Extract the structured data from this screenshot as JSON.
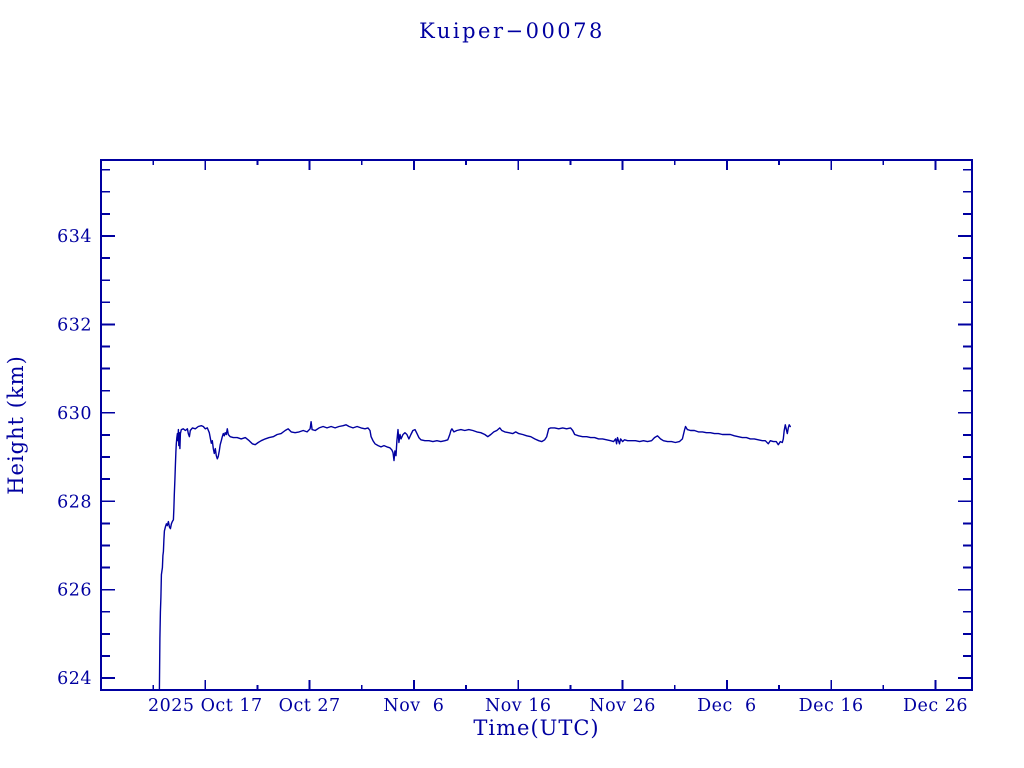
{
  "colors": {
    "accent": "#0000A0",
    "background": "#ffffff"
  },
  "chart_data": {
    "type": "line",
    "title": "Kuiper−00078",
    "xlabel": "Time(UTC)",
    "ylabel": "Height (km)",
    "grid": false,
    "legend": false,
    "line_color": "#0000A0",
    "axis_color": "#0000A0",
    "x_axis_note": "days measured from axis start; tick labels are calendar dates shown on the plot",
    "x_range": [
      0,
      83.5
    ],
    "y_range": [
      623.73,
      635.72
    ],
    "x_major_ticks": [
      {
        "pos": 10,
        "label": "2025 Oct 17"
      },
      {
        "pos": 20,
        "label": "Oct 27"
      },
      {
        "pos": 30,
        "label": "Nov  6"
      },
      {
        "pos": 40,
        "label": "Nov 16"
      },
      {
        "pos": 50,
        "label": "Nov 26"
      },
      {
        "pos": 60,
        "label": "Dec  6"
      },
      {
        "pos": 70,
        "label": "Dec 16"
      },
      {
        "pos": 80,
        "label": "Dec 26"
      }
    ],
    "x_minor_ticks": [
      5,
      15,
      25,
      35,
      45,
      55,
      65,
      75
    ],
    "y_major_ticks": [
      {
        "pos": 624,
        "label": "624"
      },
      {
        "pos": 626,
        "label": "626"
      },
      {
        "pos": 628,
        "label": "628"
      },
      {
        "pos": 630,
        "label": "630"
      },
      {
        "pos": 632,
        "label": "632"
      },
      {
        "pos": 634,
        "label": "634"
      }
    ],
    "y_minor_ticks": [
      624.5,
      625,
      625.5,
      626.5,
      627,
      627.5,
      628.5,
      629,
      629.5,
      630.5,
      631,
      631.5,
      632.5,
      633,
      633.5,
      634.5,
      635,
      635.5
    ],
    "series": [
      {
        "name": "height",
        "points": [
          [
            5.6,
            623.73
          ],
          [
            5.65,
            624.9
          ],
          [
            5.69,
            625.5
          ],
          [
            5.74,
            625.82
          ],
          [
            5.79,
            626.34
          ],
          [
            5.89,
            626.5
          ],
          [
            5.93,
            626.77
          ],
          [
            5.98,
            626.86
          ],
          [
            6.03,
            627.13
          ],
          [
            6.08,
            627.33
          ],
          [
            6.17,
            627.42
          ],
          [
            6.27,
            627.49
          ],
          [
            6.36,
            627.45
          ],
          [
            6.46,
            627.54
          ],
          [
            6.56,
            627.42
          ],
          [
            6.65,
            627.38
          ],
          [
            6.75,
            627.49
          ],
          [
            6.84,
            627.54
          ],
          [
            6.94,
            627.58
          ],
          [
            6.99,
            627.85
          ],
          [
            7.03,
            628.15
          ],
          [
            7.08,
            628.49
          ],
          [
            7.13,
            628.82
          ],
          [
            7.18,
            629.12
          ],
          [
            7.22,
            629.3
          ],
          [
            7.27,
            629.43
          ],
          [
            7.32,
            629.53
          ],
          [
            7.37,
            629.37
          ],
          [
            7.42,
            629.62
          ],
          [
            7.46,
            629.26
          ],
          [
            7.51,
            629.55
          ],
          [
            7.56,
            629.19
          ],
          [
            7.61,
            629.53
          ],
          [
            7.7,
            629.62
          ],
          [
            7.89,
            629.64
          ],
          [
            8.09,
            629.6
          ],
          [
            8.28,
            629.64
          ],
          [
            8.37,
            629.53
          ],
          [
            8.47,
            629.46
          ],
          [
            8.56,
            629.6
          ],
          [
            8.76,
            629.66
          ],
          [
            9.04,
            629.64
          ],
          [
            9.33,
            629.69
          ],
          [
            9.62,
            629.71
          ],
          [
            9.81,
            629.69
          ],
          [
            10.0,
            629.64
          ],
          [
            10.19,
            629.66
          ],
          [
            10.38,
            629.55
          ],
          [
            10.48,
            629.43
          ],
          [
            10.57,
            629.31
          ],
          [
            10.67,
            629.37
          ],
          [
            10.77,
            629.19
          ],
          [
            10.86,
            629.08
          ],
          [
            10.96,
            629.19
          ],
          [
            11.05,
            629.03
          ],
          [
            11.15,
            628.96
          ],
          [
            11.24,
            629.01
          ],
          [
            11.34,
            629.14
          ],
          [
            11.43,
            629.28
          ],
          [
            11.53,
            629.37
          ],
          [
            11.63,
            629.46
          ],
          [
            11.72,
            629.53
          ],
          [
            11.82,
            629.48
          ],
          [
            11.91,
            629.55
          ],
          [
            12.01,
            629.51
          ],
          [
            12.11,
            629.64
          ],
          [
            12.2,
            629.51
          ],
          [
            12.39,
            629.46
          ],
          [
            12.68,
            629.44
          ],
          [
            13.06,
            629.44
          ],
          [
            13.44,
            629.41
          ],
          [
            13.83,
            629.44
          ],
          [
            14.21,
            629.37
          ],
          [
            14.5,
            629.3
          ],
          [
            14.78,
            629.28
          ],
          [
            15.07,
            629.33
          ],
          [
            15.36,
            629.37
          ],
          [
            15.74,
            629.41
          ],
          [
            16.12,
            629.44
          ],
          [
            16.51,
            629.46
          ],
          [
            16.89,
            629.51
          ],
          [
            17.27,
            629.53
          ],
          [
            17.66,
            629.6
          ],
          [
            17.94,
            629.64
          ],
          [
            18.23,
            629.57
          ],
          [
            18.61,
            629.55
          ],
          [
            19.0,
            629.57
          ],
          [
            19.38,
            629.6
          ],
          [
            19.76,
            629.57
          ],
          [
            20.05,
            629.64
          ],
          [
            20.14,
            629.8
          ],
          [
            20.24,
            629.62
          ],
          [
            20.53,
            629.6
          ],
          [
            20.91,
            629.66
          ],
          [
            21.29,
            629.69
          ],
          [
            21.67,
            629.66
          ],
          [
            22.06,
            629.69
          ],
          [
            22.44,
            629.66
          ],
          [
            22.82,
            629.69
          ],
          [
            23.21,
            629.71
          ],
          [
            23.49,
            629.73
          ],
          [
            23.78,
            629.69
          ],
          [
            24.16,
            629.66
          ],
          [
            24.55,
            629.69
          ],
          [
            24.93,
            629.66
          ],
          [
            25.31,
            629.64
          ],
          [
            25.6,
            629.66
          ],
          [
            25.79,
            629.6
          ],
          [
            25.89,
            629.46
          ],
          [
            26.08,
            629.37
          ],
          [
            26.27,
            629.3
          ],
          [
            26.56,
            629.26
          ],
          [
            26.84,
            629.23
          ],
          [
            27.13,
            629.26
          ],
          [
            27.42,
            629.23
          ],
          [
            27.7,
            629.21
          ],
          [
            27.89,
            629.16
          ],
          [
            27.99,
            629.1
          ],
          [
            28.09,
            628.92
          ],
          [
            28.18,
            629.14
          ],
          [
            28.28,
            629.03
          ],
          [
            28.37,
            629.37
          ],
          [
            28.47,
            629.62
          ],
          [
            28.56,
            629.33
          ],
          [
            28.66,
            629.51
          ],
          [
            28.76,
            629.41
          ],
          [
            28.95,
            629.51
          ],
          [
            29.14,
            629.55
          ],
          [
            29.33,
            629.51
          ],
          [
            29.52,
            629.41
          ],
          [
            29.71,
            629.51
          ],
          [
            29.9,
            629.6
          ],
          [
            30.1,
            629.62
          ],
          [
            30.29,
            629.53
          ],
          [
            30.48,
            629.44
          ],
          [
            30.67,
            629.39
          ],
          [
            31.05,
            629.37
          ],
          [
            31.44,
            629.37
          ],
          [
            31.82,
            629.35
          ],
          [
            32.2,
            629.37
          ],
          [
            32.58,
            629.35
          ],
          [
            32.97,
            629.37
          ],
          [
            33.25,
            629.39
          ],
          [
            33.44,
            629.51
          ],
          [
            33.54,
            629.6
          ],
          [
            33.64,
            629.64
          ],
          [
            33.83,
            629.57
          ],
          [
            34.11,
            629.6
          ],
          [
            34.5,
            629.62
          ],
          [
            34.88,
            629.6
          ],
          [
            35.26,
            629.62
          ],
          [
            35.65,
            629.6
          ],
          [
            36.03,
            629.57
          ],
          [
            36.41,
            629.55
          ],
          [
            36.79,
            629.51
          ],
          [
            37.08,
            629.46
          ],
          [
            37.37,
            629.51
          ],
          [
            37.66,
            629.57
          ],
          [
            37.94,
            629.6
          ],
          [
            38.23,
            629.66
          ],
          [
            38.42,
            629.6
          ],
          [
            38.71,
            629.57
          ],
          [
            39.09,
            629.55
          ],
          [
            39.47,
            629.53
          ],
          [
            39.76,
            629.57
          ],
          [
            40.05,
            629.53
          ],
          [
            40.43,
            629.51
          ],
          [
            40.81,
            629.48
          ],
          [
            41.2,
            629.46
          ],
          [
            41.58,
            629.41
          ],
          [
            41.96,
            629.37
          ],
          [
            42.25,
            629.35
          ],
          [
            42.54,
            629.39
          ],
          [
            42.73,
            629.46
          ],
          [
            42.92,
            629.64
          ],
          [
            43.11,
            629.66
          ],
          [
            43.49,
            629.66
          ],
          [
            43.88,
            629.64
          ],
          [
            44.26,
            629.66
          ],
          [
            44.64,
            629.64
          ],
          [
            45.02,
            629.66
          ],
          [
            45.22,
            629.6
          ],
          [
            45.41,
            629.51
          ],
          [
            45.79,
            629.48
          ],
          [
            46.17,
            629.46
          ],
          [
            46.56,
            629.46
          ],
          [
            46.94,
            629.44
          ],
          [
            47.32,
            629.44
          ],
          [
            47.7,
            629.41
          ],
          [
            48.09,
            629.41
          ],
          [
            48.47,
            629.39
          ],
          [
            48.85,
            629.37
          ],
          [
            49.14,
            629.35
          ],
          [
            49.33,
            629.41
          ],
          [
            49.43,
            629.3
          ],
          [
            49.52,
            629.44
          ],
          [
            49.71,
            629.3
          ],
          [
            49.81,
            629.41
          ],
          [
            50.0,
            629.35
          ],
          [
            50.19,
            629.39
          ],
          [
            50.48,
            629.37
          ],
          [
            50.86,
            629.37
          ],
          [
            51.24,
            629.37
          ],
          [
            51.63,
            629.35
          ],
          [
            52.01,
            629.37
          ],
          [
            52.39,
            629.35
          ],
          [
            52.78,
            629.37
          ],
          [
            53.06,
            629.44
          ],
          [
            53.35,
            629.48
          ],
          [
            53.64,
            629.41
          ],
          [
            53.92,
            629.37
          ],
          [
            54.31,
            629.35
          ],
          [
            54.69,
            629.35
          ],
          [
            55.07,
            629.33
          ],
          [
            55.45,
            629.35
          ],
          [
            55.74,
            629.41
          ],
          [
            55.93,
            629.6
          ],
          [
            56.03,
            629.69
          ],
          [
            56.22,
            629.62
          ],
          [
            56.51,
            629.6
          ],
          [
            56.89,
            629.6
          ],
          [
            57.27,
            629.57
          ],
          [
            57.66,
            629.57
          ],
          [
            58.04,
            629.55
          ],
          [
            58.42,
            629.55
          ],
          [
            58.8,
            629.53
          ],
          [
            59.19,
            629.53
          ],
          [
            59.57,
            629.51
          ],
          [
            59.95,
            629.51
          ],
          [
            60.33,
            629.51
          ],
          [
            60.72,
            629.48
          ],
          [
            61.1,
            629.46
          ],
          [
            61.48,
            629.44
          ],
          [
            61.87,
            629.44
          ],
          [
            62.25,
            629.41
          ],
          [
            62.63,
            629.41
          ],
          [
            63.01,
            629.39
          ],
          [
            63.4,
            629.37
          ],
          [
            63.68,
            629.37
          ],
          [
            63.97,
            629.3
          ],
          [
            64.16,
            629.37
          ],
          [
            64.45,
            629.35
          ],
          [
            64.74,
            629.35
          ],
          [
            64.93,
            629.28
          ],
          [
            65.12,
            629.35
          ],
          [
            65.31,
            629.33
          ],
          [
            65.41,
            629.41
          ],
          [
            65.5,
            629.6
          ],
          [
            65.6,
            629.73
          ],
          [
            65.69,
            629.64
          ],
          [
            65.79,
            629.53
          ],
          [
            65.89,
            629.66
          ],
          [
            65.98,
            629.73
          ],
          [
            66.08,
            629.69
          ]
        ]
      }
    ]
  }
}
